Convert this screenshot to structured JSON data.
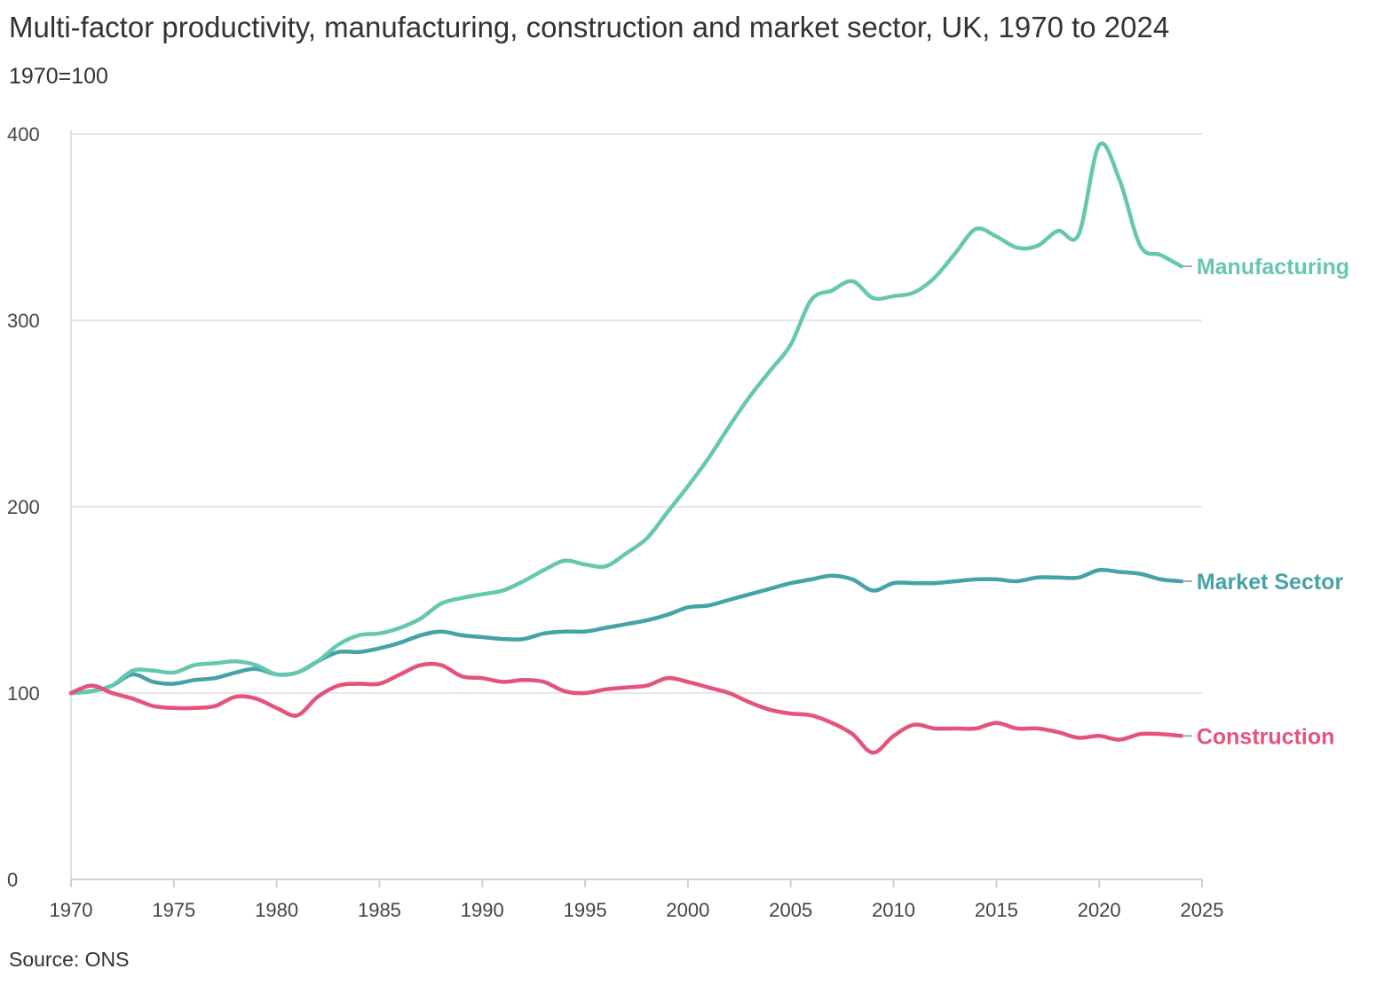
{
  "header": {
    "title": "Multi-factor productivity, manufacturing, construction and market sector, UK, 1970 to 2024",
    "subtitle": "1970=100"
  },
  "footer": {
    "source": "Source: ONS"
  },
  "chart_data": {
    "type": "line",
    "title": "Multi-factor productivity, manufacturing, construction and market sector, UK, 1970 to 2024",
    "subtitle": "1970=100",
    "xlabel": "",
    "ylabel": "",
    "xlim": [
      1970,
      2025
    ],
    "ylim": [
      0,
      400
    ],
    "xticks": [
      1970,
      1975,
      1980,
      1985,
      1990,
      1995,
      2000,
      2005,
      2010,
      2015,
      2020,
      2025
    ],
    "yticks": [
      0,
      100,
      200,
      300,
      400
    ],
    "grid": "horizontal",
    "legend": "direct labels at right end of lines",
    "x": [
      1970,
      1971,
      1972,
      1973,
      1974,
      1975,
      1976,
      1977,
      1978,
      1979,
      1980,
      1981,
      1982,
      1983,
      1984,
      1985,
      1986,
      1987,
      1988,
      1989,
      1990,
      1991,
      1992,
      1993,
      1994,
      1995,
      1996,
      1997,
      1998,
      1999,
      2000,
      2001,
      2002,
      2003,
      2004,
      2005,
      2006,
      2007,
      2008,
      2009,
      2010,
      2011,
      2012,
      2013,
      2014,
      2015,
      2016,
      2017,
      2018,
      2019,
      2020,
      2021,
      2022,
      2023,
      2024
    ],
    "series": [
      {
        "name": "Manufacturing",
        "color": "#66c7b0",
        "values": [
          100,
          101,
          104,
          112,
          112,
          111,
          115,
          116,
          117,
          115,
          110,
          111,
          117,
          126,
          131,
          132,
          135,
          140,
          148,
          151,
          153,
          155,
          160,
          166,
          171,
          169,
          168,
          175,
          183,
          197,
          211,
          226,
          243,
          259,
          273,
          287,
          311,
          316,
          321,
          312,
          313,
          315,
          323,
          336,
          349,
          345,
          339,
          340,
          348,
          346,
          394,
          375,
          340,
          335,
          329
        ]
      },
      {
        "name": "Market Sector",
        "color": "#45a3a6",
        "values": [
          100,
          101,
          104,
          110,
          106,
          105,
          107,
          108,
          111,
          113,
          110,
          111,
          117,
          122,
          122,
          124,
          127,
          131,
          133,
          131,
          130,
          129,
          129,
          132,
          133,
          133,
          135,
          137,
          139,
          142,
          146,
          147,
          150,
          153,
          156,
          159,
          161,
          163,
          161,
          155,
          159,
          159,
          159,
          160,
          161,
          161,
          160,
          162,
          162,
          162,
          166,
          165,
          164,
          161,
          160
        ]
      },
      {
        "name": "Construction",
        "color": "#e4547a",
        "values": [
          100,
          104,
          100,
          97,
          93,
          92,
          92,
          93,
          98,
          97,
          92,
          88,
          98,
          104,
          105,
          105,
          110,
          115,
          115,
          109,
          108,
          106,
          107,
          106,
          101,
          100,
          102,
          103,
          104,
          108,
          106,
          103,
          100,
          95,
          91,
          89,
          88,
          84,
          78,
          68,
          77,
          83,
          81,
          81,
          81,
          84,
          81,
          81,
          79,
          76,
          77,
          75,
          78,
          78,
          77
        ]
      }
    ]
  }
}
